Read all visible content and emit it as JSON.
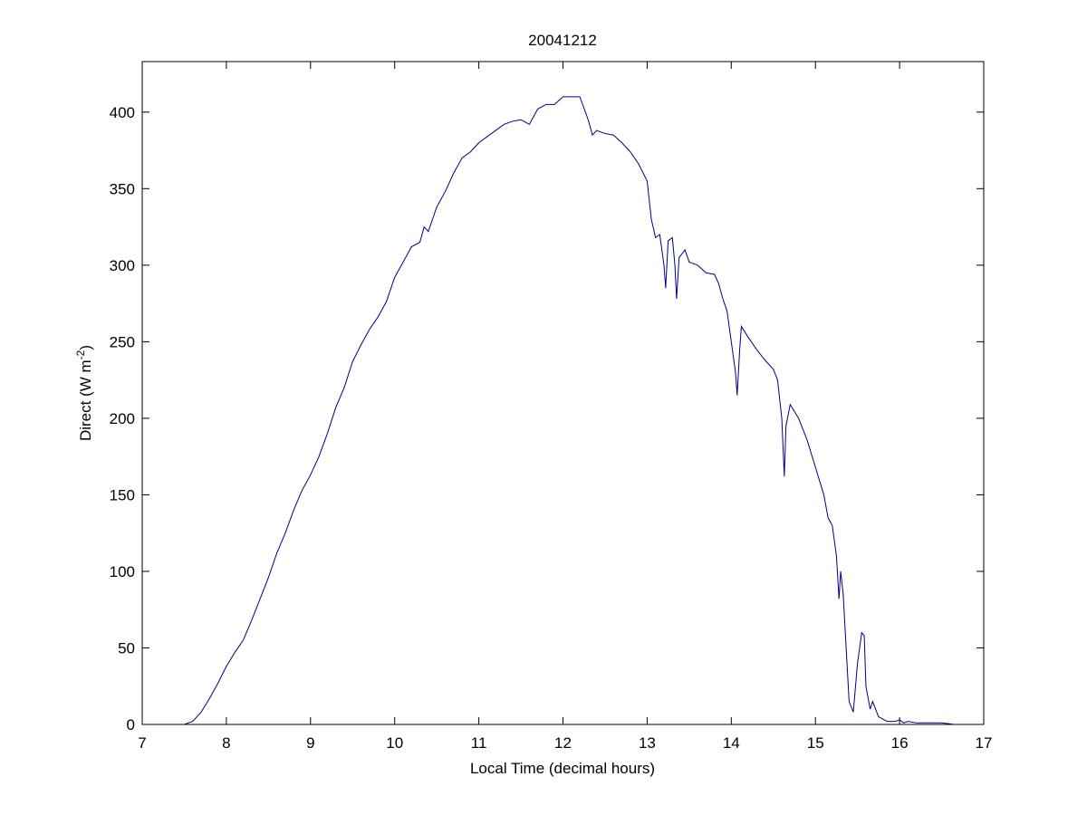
{
  "chart_data": {
    "type": "line",
    "title": "20041212",
    "xlabel": "Local Time (decimal hours)",
    "ylabel": {
      "text": "Direct (W m",
      "superscript": "-2",
      "suffix": ")"
    },
    "xlim": [
      7,
      17
    ],
    "ylim": [
      0,
      433
    ],
    "xticks": [
      7,
      8,
      9,
      10,
      11,
      12,
      13,
      14,
      15,
      16,
      17
    ],
    "yticks": [
      0,
      50,
      100,
      150,
      200,
      250,
      300,
      350,
      400
    ],
    "x": [
      7.5,
      7.6,
      7.7,
      7.8,
      7.9,
      8.0,
      8.1,
      8.2,
      8.3,
      8.4,
      8.5,
      8.6,
      8.7,
      8.8,
      8.9,
      9.0,
      9.1,
      9.2,
      9.3,
      9.4,
      9.5,
      9.6,
      9.7,
      9.8,
      9.9,
      10.0,
      10.1,
      10.2,
      10.3,
      10.35,
      10.4,
      10.5,
      10.6,
      10.7,
      10.8,
      10.9,
      11.0,
      11.1,
      11.2,
      11.3,
      11.4,
      11.5,
      11.6,
      11.7,
      11.8,
      11.9,
      12.0,
      12.1,
      12.2,
      12.3,
      12.35,
      12.4,
      12.5,
      12.6,
      12.7,
      12.8,
      12.9,
      13.0,
      13.05,
      13.1,
      13.15,
      13.2,
      13.22,
      13.25,
      13.3,
      13.33,
      13.35,
      13.38,
      13.45,
      13.5,
      13.6,
      13.7,
      13.8,
      13.85,
      13.9,
      13.95,
      14.0,
      14.05,
      14.07,
      14.1,
      14.12,
      14.2,
      14.3,
      14.4,
      14.5,
      14.55,
      14.6,
      14.63,
      14.65,
      14.7,
      14.8,
      14.9,
      15.0,
      15.1,
      15.15,
      15.2,
      15.25,
      15.28,
      15.3,
      15.33,
      15.37,
      15.4,
      15.45,
      15.5,
      15.55,
      15.58,
      15.6,
      15.65,
      15.68,
      15.75,
      15.85,
      15.95,
      16.0,
      16.05,
      16.1,
      16.2,
      16.3,
      16.5,
      16.65
    ],
    "series": [
      {
        "color": "#00008b",
        "values": [
          0,
          2,
          8,
          17,
          27,
          38,
          47,
          55,
          68,
          82,
          96,
          112,
          125,
          140,
          153,
          163,
          175,
          190,
          207,
          220,
          237,
          248,
          258,
          266,
          276,
          292,
          302,
          312,
          315,
          325,
          322,
          338,
          348,
          360,
          370,
          374,
          380,
          384,
          388,
          392,
          394,
          395,
          392,
          402,
          405,
          405,
          410,
          410,
          410,
          395,
          385,
          388,
          386,
          385,
          380,
          374,
          366,
          355,
          330,
          318,
          320,
          300,
          285,
          316,
          318,
          300,
          278,
          305,
          310,
          302,
          300,
          295,
          294,
          288,
          278,
          270,
          250,
          230,
          215,
          245,
          260,
          253,
          245,
          238,
          232,
          225,
          200,
          162,
          195,
          209,
          200,
          186,
          168,
          150,
          135,
          130,
          110,
          82,
          100,
          85,
          45,
          15,
          8,
          40,
          60,
          58,
          25,
          10,
          15,
          5,
          2,
          2,
          3,
          1,
          2,
          1,
          1,
          1,
          0
        ]
      }
    ]
  }
}
